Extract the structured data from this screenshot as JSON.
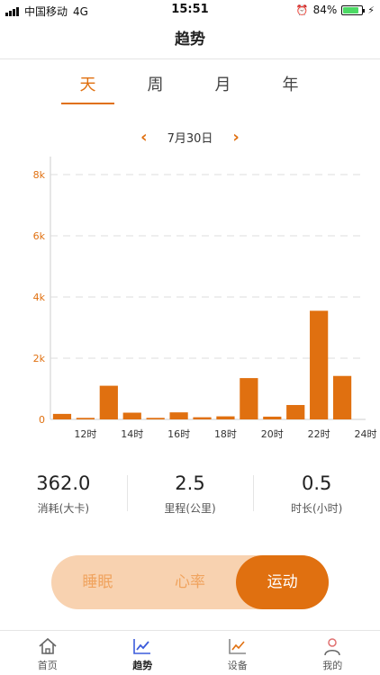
{
  "status_bar": {
    "carrier": "中国移动",
    "network": "4G",
    "time": "15:51",
    "battery": "84%",
    "battery_level": 0.84
  },
  "header": {
    "title": "趋势"
  },
  "tabs": [
    {
      "label": "天",
      "active": true
    },
    {
      "label": "周",
      "active": false
    },
    {
      "label": "月",
      "active": false
    },
    {
      "label": "年",
      "active": false
    }
  ],
  "date_nav": {
    "prev": "‹",
    "date": "7月30日",
    "next": "›"
  },
  "chart_data": {
    "type": "bar",
    "x": [
      11,
      12,
      13,
      14,
      15,
      16,
      17,
      18,
      19,
      20,
      21,
      22,
      23
    ],
    "values": [
      180,
      50,
      1100,
      220,
      50,
      230,
      70,
      100,
      1350,
      90,
      470,
      3550,
      1420
    ],
    "x_ticks": [
      "12时",
      "14时",
      "16时",
      "18时",
      "20时",
      "22时",
      "24时"
    ],
    "x_tick_values": [
      12,
      14,
      16,
      18,
      20,
      22,
      24
    ],
    "y_ticks": [
      "0",
      "2k",
      "4k",
      "6k",
      "8k"
    ],
    "y_tick_values": [
      0,
      2000,
      4000,
      6000,
      8000
    ],
    "ylim": [
      0,
      8000
    ],
    "xlim": [
      10.5,
      24
    ],
    "grid": true,
    "colors": {
      "bar": "#e07010",
      "axis": "#e07010",
      "grid": "#dddddd"
    }
  },
  "stats": [
    {
      "value": "362.0",
      "label": "消耗(大卡)"
    },
    {
      "value": "2.5",
      "label": "里程(公里)"
    },
    {
      "value": "0.5",
      "label": "时长(小时)"
    }
  ],
  "segment": [
    {
      "label": "睡眠",
      "active": false
    },
    {
      "label": "心率",
      "active": false
    },
    {
      "label": "运动",
      "active": true
    }
  ],
  "bottom_nav": [
    {
      "label": "首页",
      "icon": "home-icon",
      "active": false
    },
    {
      "label": "趋势",
      "icon": "trend-icon",
      "active": true
    },
    {
      "label": "设备",
      "icon": "device-icon",
      "active": false
    },
    {
      "label": "我的",
      "icon": "profile-icon",
      "active": false
    }
  ],
  "colors": {
    "accent": "#e07010",
    "accent_light": "#f8d2b0",
    "accent_text_light": "#f0a35e"
  }
}
